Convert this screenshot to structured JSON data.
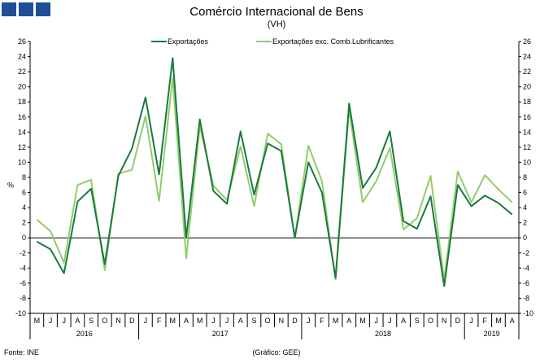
{
  "header": {
    "title": "Comércio Internacional de Bens",
    "subtitle": "(VH)"
  },
  "footer": {
    "source": "Fonte: INE",
    "credit": "(Gráfico: GEE)"
  },
  "colors": {
    "series_dark": "#1a7a3c",
    "series_light": "#92cc6c",
    "logo": "#1f4e9a"
  },
  "chart_data": {
    "type": "line",
    "title": "Comércio Internacional de Bens",
    "subtitle": "(VH)",
    "ylabel": "%",
    "ylim": [
      -10,
      26
    ],
    "yticks": [
      -10,
      -8,
      -6,
      -4,
      -2,
      0,
      2,
      4,
      6,
      8,
      10,
      12,
      14,
      16,
      18,
      20,
      22,
      24,
      26
    ],
    "grid": false,
    "legend": "top",
    "categories": [
      "M",
      "J",
      "J",
      "A",
      "S",
      "O",
      "N",
      "D",
      "J",
      "F",
      "M",
      "A",
      "M",
      "J",
      "J",
      "A",
      "S",
      "O",
      "N",
      "D",
      "J",
      "F",
      "M",
      "A",
      "M",
      "J",
      "J",
      "A",
      "S",
      "O",
      "N",
      "D",
      "J",
      "F",
      "M",
      "A"
    ],
    "years": [
      {
        "label": "2016",
        "start": 0,
        "end": 7
      },
      {
        "label": "2017",
        "start": 8,
        "end": 19
      },
      {
        "label": "2018",
        "start": 20,
        "end": 31
      },
      {
        "label": "2019",
        "start": 32,
        "end": 35
      }
    ],
    "series": [
      {
        "name": "Exportações",
        "color": "#1a7a3c",
        "values": [
          -0.5,
          -1.5,
          -4.7,
          4.8,
          6.5,
          -3.5,
          8.2,
          11.8,
          18.6,
          8.4,
          23.8,
          0.0,
          15.7,
          6.2,
          4.5,
          14.1,
          5.7,
          12.5,
          11.5,
          0.0,
          10.0,
          6.0,
          -5.3,
          17.8,
          6.6,
          9.3,
          14.1,
          2.2,
          1.2,
          5.5,
          -6.4,
          7.0,
          4.2,
          5.6,
          4.6,
          3.1
        ]
      },
      {
        "name": "Exportações exc. Comb.Lubrificantes",
        "color": "#92cc6c",
        "values": [
          2.4,
          0.9,
          -3.3,
          7.0,
          7.7,
          -4.3,
          8.5,
          9.0,
          16.1,
          4.9,
          21.2,
          -2.7,
          14.8,
          6.9,
          5.0,
          12.1,
          4.2,
          13.8,
          12.4,
          0.0,
          12.2,
          7.5,
          -5.5,
          17.0,
          4.7,
          7.5,
          11.9,
          1.1,
          2.6,
          8.2,
          -5.6,
          8.8,
          4.7,
          8.3,
          6.4,
          4.7
        ]
      }
    ]
  }
}
